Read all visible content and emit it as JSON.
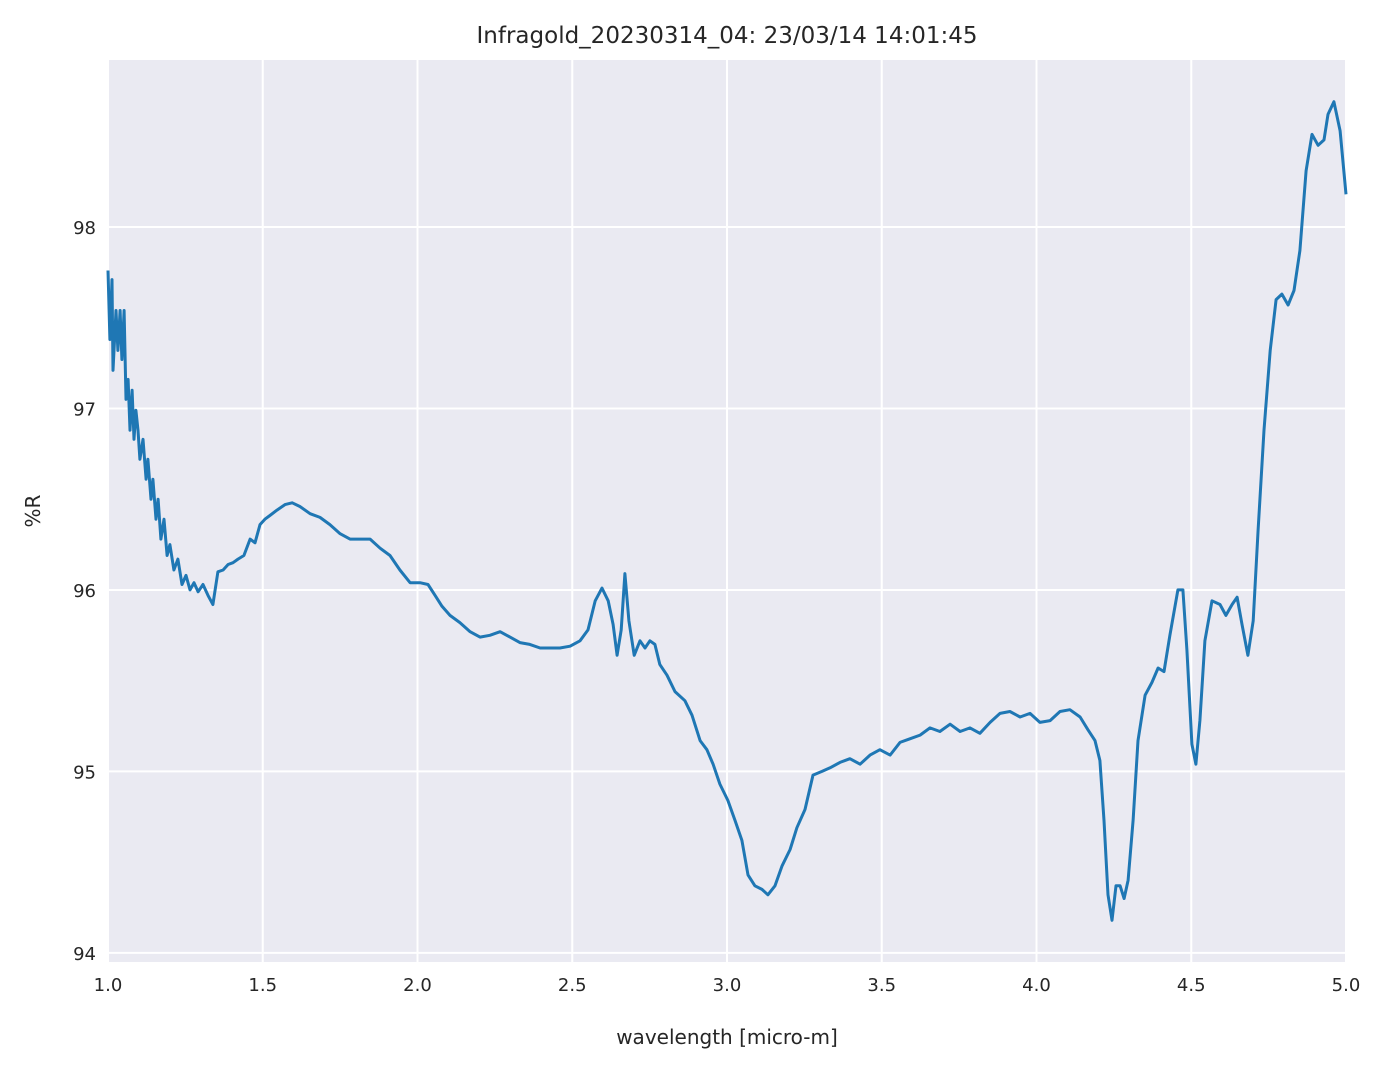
{
  "chart_data": {
    "type": "line",
    "title": "Infragold_20230314_04:  23/03/14 14:01:45",
    "xlabel": "wavelength [micro-m]",
    "ylabel": "%R",
    "xlim": [
      1.0,
      5.0
    ],
    "ylim": [
      93.95,
      98.92
    ],
    "xticks": [
      1.0,
      1.5,
      2.0,
      2.5,
      3.0,
      3.5,
      4.0,
      4.5,
      5.0
    ],
    "xtick_labels": [
      "1.0",
      "1.5",
      "2.0",
      "2.5",
      "3.0",
      "3.5",
      "4.0",
      "4.5",
      "5.0"
    ],
    "yticks": [
      94,
      95,
      96,
      97,
      98
    ],
    "ytick_labels": [
      "94",
      "95",
      "96",
      "97",
      "98"
    ],
    "grid": true,
    "background_color": "#eaeaf2",
    "grid_color": "#ffffff",
    "line_color": "#1f77b4",
    "series": [
      {
        "points": [
          [
            1.0,
            97.76
          ],
          [
            1.006,
            97.38
          ],
          [
            1.013,
            97.71
          ],
          [
            1.016,
            97.21
          ],
          [
            1.026,
            97.54
          ],
          [
            1.032,
            97.32
          ],
          [
            1.039,
            97.54
          ],
          [
            1.045,
            97.27
          ],
          [
            1.052,
            97.54
          ],
          [
            1.058,
            97.05
          ],
          [
            1.065,
            97.16
          ],
          [
            1.071,
            96.88
          ],
          [
            1.078,
            97.1
          ],
          [
            1.084,
            96.83
          ],
          [
            1.09,
            96.99
          ],
          [
            1.097,
            96.88
          ],
          [
            1.103,
            96.72
          ],
          [
            1.113,
            96.83
          ],
          [
            1.123,
            96.61
          ],
          [
            1.129,
            96.72
          ],
          [
            1.139,
            96.5
          ],
          [
            1.145,
            96.61
          ],
          [
            1.155,
            96.39
          ],
          [
            1.162,
            96.5
          ],
          [
            1.171,
            96.28
          ],
          [
            1.181,
            96.39
          ],
          [
            1.191,
            96.19
          ],
          [
            1.2,
            96.25
          ],
          [
            1.213,
            96.11
          ],
          [
            1.226,
            96.17
          ],
          [
            1.239,
            96.03
          ],
          [
            1.252,
            96.08
          ],
          [
            1.265,
            96.0
          ],
          [
            1.278,
            96.04
          ],
          [
            1.291,
            95.99
          ],
          [
            1.307,
            96.03
          ],
          [
            1.323,
            95.97
          ],
          [
            1.339,
            95.92
          ],
          [
            1.355,
            96.1
          ],
          [
            1.372,
            96.11
          ],
          [
            1.388,
            96.14
          ],
          [
            1.404,
            96.15
          ],
          [
            1.42,
            96.17
          ],
          [
            1.439,
            96.19
          ],
          [
            1.459,
            96.28
          ],
          [
            1.475,
            96.26
          ],
          [
            1.491,
            96.36
          ],
          [
            1.507,
            96.39
          ],
          [
            1.523,
            96.41
          ],
          [
            1.546,
            96.44
          ],
          [
            1.572,
            96.47
          ],
          [
            1.595,
            96.48
          ],
          [
            1.62,
            96.46
          ],
          [
            1.653,
            96.42
          ],
          [
            1.685,
            96.4
          ],
          [
            1.717,
            96.36
          ],
          [
            1.75,
            96.31
          ],
          [
            1.782,
            96.28
          ],
          [
            1.814,
            96.28
          ],
          [
            1.847,
            96.28
          ],
          [
            1.879,
            96.23
          ],
          [
            1.911,
            96.19
          ],
          [
            1.943,
            96.11
          ],
          [
            1.976,
            96.04
          ],
          [
            2.008,
            96.04
          ],
          [
            2.034,
            96.03
          ],
          [
            2.057,
            95.97
          ],
          [
            2.079,
            95.91
          ],
          [
            2.105,
            95.86
          ],
          [
            2.137,
            95.82
          ],
          [
            2.17,
            95.77
          ],
          [
            2.202,
            95.74
          ],
          [
            2.234,
            95.75
          ],
          [
            2.267,
            95.77
          ],
          [
            2.299,
            95.74
          ],
          [
            2.331,
            95.71
          ],
          [
            2.363,
            95.7
          ],
          [
            2.396,
            95.68
          ],
          [
            2.428,
            95.68
          ],
          [
            2.46,
            95.68
          ],
          [
            2.493,
            95.69
          ],
          [
            2.525,
            95.72
          ],
          [
            2.551,
            95.78
          ],
          [
            2.574,
            95.94
          ],
          [
            2.596,
            96.01
          ],
          [
            2.616,
            95.94
          ],
          [
            2.632,
            95.81
          ],
          [
            2.645,
            95.64
          ],
          [
            2.658,
            95.78
          ],
          [
            2.67,
            96.09
          ],
          [
            2.683,
            95.83
          ],
          [
            2.7,
            95.64
          ],
          [
            2.719,
            95.72
          ],
          [
            2.735,
            95.68
          ],
          [
            2.751,
            95.72
          ],
          [
            2.767,
            95.7
          ],
          [
            2.783,
            95.59
          ],
          [
            2.806,
            95.53
          ],
          [
            2.832,
            95.44
          ],
          [
            2.864,
            95.39
          ],
          [
            2.887,
            95.31
          ],
          [
            2.913,
            95.17
          ],
          [
            2.935,
            95.12
          ],
          [
            2.955,
            95.04
          ],
          [
            2.977,
            94.93
          ],
          [
            3.003,
            94.84
          ],
          [
            3.026,
            94.73
          ],
          [
            3.048,
            94.62
          ],
          [
            3.068,
            94.43
          ],
          [
            3.09,
            94.37
          ],
          [
            3.113,
            94.35
          ],
          [
            3.132,
            94.32
          ],
          [
            3.155,
            94.37
          ],
          [
            3.178,
            94.48
          ],
          [
            3.204,
            94.57
          ],
          [
            3.226,
            94.69
          ],
          [
            3.252,
            94.79
          ],
          [
            3.278,
            94.98
          ],
          [
            3.307,
            95.0
          ],
          [
            3.333,
            95.02
          ],
          [
            3.365,
            95.05
          ],
          [
            3.397,
            95.07
          ],
          [
            3.43,
            95.04
          ],
          [
            3.462,
            95.09
          ],
          [
            3.494,
            95.12
          ],
          [
            3.527,
            95.09
          ],
          [
            3.559,
            95.16
          ],
          [
            3.591,
            95.18
          ],
          [
            3.624,
            95.2
          ],
          [
            3.656,
            95.24
          ],
          [
            3.688,
            95.22
          ],
          [
            3.721,
            95.26
          ],
          [
            3.753,
            95.22
          ],
          [
            3.785,
            95.24
          ],
          [
            3.817,
            95.21
          ],
          [
            3.85,
            95.27
          ],
          [
            3.882,
            95.32
          ],
          [
            3.914,
            95.33
          ],
          [
            3.947,
            95.3
          ],
          [
            3.979,
            95.32
          ],
          [
            4.011,
            95.27
          ],
          [
            4.044,
            95.28
          ],
          [
            4.076,
            95.33
          ],
          [
            4.108,
            95.34
          ],
          [
            4.141,
            95.3
          ],
          [
            4.166,
            95.23
          ],
          [
            4.189,
            95.17
          ],
          [
            4.205,
            95.06
          ],
          [
            4.218,
            94.73
          ],
          [
            4.231,
            94.32
          ],
          [
            4.244,
            94.18
          ],
          [
            4.257,
            94.37
          ],
          [
            4.27,
            94.37
          ],
          [
            4.283,
            94.3
          ],
          [
            4.296,
            94.4
          ],
          [
            4.312,
            94.73
          ],
          [
            4.328,
            95.17
          ],
          [
            4.351,
            95.42
          ],
          [
            4.373,
            95.49
          ],
          [
            4.393,
            95.57
          ],
          [
            4.412,
            95.55
          ],
          [
            4.431,
            95.75
          ],
          [
            4.457,
            96.0
          ],
          [
            4.473,
            96.0
          ],
          [
            4.486,
            95.67
          ],
          [
            4.502,
            95.15
          ],
          [
            4.515,
            95.04
          ],
          [
            4.528,
            95.28
          ],
          [
            4.544,
            95.72
          ],
          [
            4.567,
            95.94
          ],
          [
            4.593,
            95.92
          ],
          [
            4.612,
            95.86
          ],
          [
            4.632,
            95.92
          ],
          [
            4.648,
            95.96
          ],
          [
            4.664,
            95.81
          ],
          [
            4.683,
            95.64
          ],
          [
            4.7,
            95.83
          ],
          [
            4.716,
            96.33
          ],
          [
            4.735,
            96.88
          ],
          [
            4.755,
            97.32
          ],
          [
            4.774,
            97.6
          ],
          [
            4.793,
            97.63
          ],
          [
            4.813,
            97.57
          ],
          [
            4.832,
            97.65
          ],
          [
            4.851,
            97.87
          ],
          [
            4.871,
            98.31
          ],
          [
            4.89,
            98.51
          ],
          [
            4.91,
            98.45
          ],
          [
            4.929,
            98.48
          ],
          [
            4.942,
            98.62
          ],
          [
            4.961,
            98.69
          ],
          [
            4.981,
            98.53
          ],
          [
            5.0,
            98.18
          ]
        ]
      }
    ]
  }
}
